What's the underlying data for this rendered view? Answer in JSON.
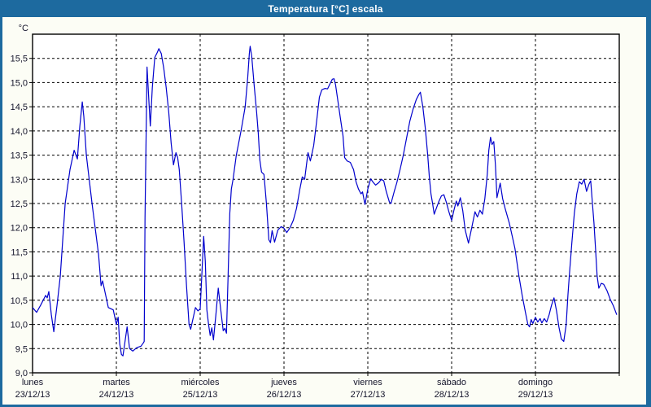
{
  "window": {
    "title": "Temperatura [°C] escala"
  },
  "colors": {
    "titlebar_bg": "#1d6a9f",
    "frame": "#1d6a9f",
    "panel_bg": "#fcfdf5",
    "plot_bg": "#ffffff",
    "grid": "#000000",
    "axis_text": "#14142a",
    "title_text": "#ffffff",
    "series": "#0000cd"
  },
  "chart_data": {
    "type": "line",
    "title": "Temperatura [°C] escala",
    "unit_label": "°C",
    "legend": "none",
    "grid": "dashed",
    "y_axis": {
      "min": 9.0,
      "max": 15.5,
      "step": 0.5,
      "plot_top_value": 16.0,
      "tick_labels": [
        "9,0",
        "9,5",
        "10,0",
        "10,5",
        "11,0",
        "11,5",
        "12,0",
        "12,5",
        "13,0",
        "13,5",
        "14,0",
        "14,5",
        "15,0",
        "15,5"
      ]
    },
    "x_axis": {
      "days": [
        {
          "weekday": "lunes",
          "date": "23/12/13"
        },
        {
          "weekday": "martes",
          "date": "24/12/13"
        },
        {
          "weekday": "miércoles",
          "date": "25/12/13"
        },
        {
          "weekday": "jueves",
          "date": "26/12/13"
        },
        {
          "weekday": "viernes",
          "date": "27/12/13"
        },
        {
          "weekday": "sábado",
          "date": "28/12/13"
        },
        {
          "weekday": "domingo",
          "date": "29/12/13"
        }
      ]
    },
    "series": [
      {
        "name": "Temperatura",
        "color": "#0000cd",
        "points": [
          [
            0.0,
            10.35
          ],
          [
            0.049,
            10.25
          ],
          [
            0.097,
            10.4
          ],
          [
            0.156,
            10.6
          ],
          [
            0.175,
            10.55
          ],
          [
            0.194,
            10.68
          ],
          [
            0.224,
            10.2
          ],
          [
            0.253,
            9.85
          ],
          [
            0.292,
            10.4
          ],
          [
            0.331,
            11.0
          ],
          [
            0.389,
            12.5
          ],
          [
            0.447,
            13.2
          ],
          [
            0.496,
            13.6
          ],
          [
            0.535,
            13.42
          ],
          [
            0.564,
            14.1
          ],
          [
            0.593,
            14.6
          ],
          [
            0.612,
            14.3
          ],
          [
            0.642,
            13.5
          ],
          [
            0.71,
            12.5
          ],
          [
            0.787,
            11.45
          ],
          [
            0.817,
            10.8
          ],
          [
            0.836,
            10.9
          ],
          [
            0.904,
            10.35
          ],
          [
            0.963,
            10.3
          ],
          [
            1.0,
            10.0
          ],
          [
            1.021,
            10.15
          ],
          [
            1.04,
            9.6
          ],
          [
            1.06,
            9.38
          ],
          [
            1.079,
            9.35
          ],
          [
            1.128,
            9.95
          ],
          [
            1.157,
            9.5
          ],
          [
            1.196,
            9.45
          ],
          [
            1.244,
            9.52
          ],
          [
            1.293,
            9.55
          ],
          [
            1.322,
            9.62
          ],
          [
            1.332,
            9.65
          ],
          [
            1.342,
            12.2
          ],
          [
            1.366,
            15.32
          ],
          [
            1.39,
            14.55
          ],
          [
            1.405,
            14.1
          ],
          [
            1.429,
            14.9
          ],
          [
            1.458,
            15.52
          ],
          [
            1.487,
            15.62
          ],
          [
            1.507,
            15.7
          ],
          [
            1.536,
            15.6
          ],
          [
            1.565,
            15.3
          ],
          [
            1.594,
            14.9
          ],
          [
            1.624,
            14.4
          ],
          [
            1.653,
            13.75
          ],
          [
            1.682,
            13.3
          ],
          [
            1.711,
            13.55
          ],
          [
            1.731,
            13.45
          ],
          [
            1.75,
            13.2
          ],
          [
            1.779,
            12.5
          ],
          [
            1.808,
            11.7
          ],
          [
            1.837,
            10.8
          ],
          [
            1.867,
            10.0
          ],
          [
            1.886,
            9.9
          ],
          [
            1.915,
            10.12
          ],
          [
            1.944,
            10.35
          ],
          [
            1.973,
            10.28
          ],
          [
            2.0,
            10.32
          ],
          [
            2.042,
            11.82
          ],
          [
            2.061,
            11.3
          ],
          [
            2.08,
            10.3
          ],
          [
            2.1,
            10.0
          ],
          [
            2.119,
            9.77
          ],
          [
            2.139,
            9.93
          ],
          [
            2.158,
            9.68
          ],
          [
            2.187,
            10.2
          ],
          [
            2.216,
            10.75
          ],
          [
            2.246,
            10.3
          ],
          [
            2.275,
            9.87
          ],
          [
            2.294,
            9.92
          ],
          [
            2.314,
            9.82
          ],
          [
            2.333,
            11.0
          ],
          [
            2.353,
            12.3
          ],
          [
            2.372,
            12.8
          ],
          [
            2.392,
            13.0
          ],
          [
            2.431,
            13.5
          ],
          [
            2.489,
            14.02
          ],
          [
            2.537,
            14.5
          ],
          [
            2.567,
            15.1
          ],
          [
            2.586,
            15.6
          ],
          [
            2.596,
            15.75
          ],
          [
            2.615,
            15.55
          ],
          [
            2.644,
            14.95
          ],
          [
            2.673,
            14.4
          ],
          [
            2.693,
            13.95
          ],
          [
            2.712,
            13.4
          ],
          [
            2.732,
            13.15
          ],
          [
            2.761,
            13.1
          ],
          [
            2.79,
            12.5
          ],
          [
            2.819,
            11.75
          ],
          [
            2.839,
            11.69
          ],
          [
            2.858,
            11.94
          ],
          [
            2.887,
            11.7
          ],
          [
            2.926,
            11.95
          ],
          [
            2.965,
            12.02
          ],
          [
            2.994,
            12.0
          ],
          [
            3.033,
            11.9
          ],
          [
            3.072,
            12.0
          ],
          [
            3.111,
            12.15
          ],
          [
            3.15,
            12.4
          ],
          [
            3.189,
            12.8
          ],
          [
            3.218,
            13.05
          ],
          [
            3.247,
            13.0
          ],
          [
            3.286,
            13.55
          ],
          [
            3.315,
            13.38
          ],
          [
            3.354,
            13.7
          ],
          [
            3.383,
            14.1
          ],
          [
            3.422,
            14.7
          ],
          [
            3.451,
            14.85
          ],
          [
            3.49,
            14.88
          ],
          [
            3.519,
            14.87
          ],
          [
            3.548,
            14.97
          ],
          [
            3.577,
            15.07
          ],
          [
            3.597,
            15.08
          ],
          [
            3.616,
            14.95
          ],
          [
            3.645,
            14.6
          ],
          [
            3.674,
            14.25
          ],
          [
            3.704,
            13.9
          ],
          [
            3.723,
            13.45
          ],
          [
            3.752,
            13.38
          ],
          [
            3.791,
            13.35
          ],
          [
            3.83,
            13.2
          ],
          [
            3.859,
            12.95
          ],
          [
            3.888,
            12.8
          ],
          [
            3.918,
            12.7
          ],
          [
            3.937,
            12.74
          ],
          [
            3.966,
            12.48
          ],
          [
            4.0,
            12.8
          ],
          [
            4.034,
            13.01
          ],
          [
            4.063,
            12.94
          ],
          [
            4.092,
            12.88
          ],
          [
            4.131,
            12.93
          ],
          [
            4.16,
            13.0
          ],
          [
            4.19,
            12.97
          ],
          [
            4.219,
            12.75
          ],
          [
            4.257,
            12.53
          ],
          [
            4.277,
            12.5
          ],
          [
            4.316,
            12.75
          ],
          [
            4.345,
            12.92
          ],
          [
            4.384,
            13.2
          ],
          [
            4.423,
            13.5
          ],
          [
            4.462,
            13.85
          ],
          [
            4.501,
            14.2
          ],
          [
            4.54,
            14.45
          ],
          [
            4.579,
            14.65
          ],
          [
            4.608,
            14.75
          ],
          [
            4.627,
            14.8
          ],
          [
            4.656,
            14.5
          ],
          [
            4.686,
            14.05
          ],
          [
            4.715,
            13.5
          ],
          [
            4.734,
            13.05
          ],
          [
            4.753,
            12.7
          ],
          [
            4.773,
            12.5
          ],
          [
            4.792,
            12.28
          ],
          [
            4.821,
            12.42
          ],
          [
            4.85,
            12.55
          ],
          [
            4.879,
            12.66
          ],
          [
            4.908,
            12.68
          ],
          [
            4.938,
            12.52
          ],
          [
            4.967,
            12.33
          ],
          [
            5.0,
            12.15
          ],
          [
            5.026,
            12.35
          ],
          [
            5.055,
            12.55
          ],
          [
            5.075,
            12.45
          ],
          [
            5.104,
            12.62
          ],
          [
            5.133,
            12.35
          ],
          [
            5.162,
            11.95
          ],
          [
            5.201,
            11.68
          ],
          [
            5.24,
            12.0
          ],
          [
            5.279,
            12.33
          ],
          [
            5.308,
            12.22
          ],
          [
            5.338,
            12.36
          ],
          [
            5.367,
            12.28
          ],
          [
            5.396,
            12.6
          ],
          [
            5.425,
            13.1
          ],
          [
            5.444,
            13.6
          ],
          [
            5.464,
            13.87
          ],
          [
            5.483,
            13.72
          ],
          [
            5.503,
            13.78
          ],
          [
            5.522,
            13.3
          ],
          [
            5.541,
            12.62
          ],
          [
            5.561,
            12.78
          ],
          [
            5.58,
            12.92
          ],
          [
            5.609,
            12.6
          ],
          [
            5.638,
            12.4
          ],
          [
            5.687,
            12.1
          ],
          [
            5.726,
            11.8
          ],
          [
            5.755,
            11.57
          ],
          [
            5.803,
            11.0
          ],
          [
            5.842,
            10.6
          ],
          [
            5.881,
            10.25
          ],
          [
            5.91,
            10.0
          ],
          [
            5.93,
            9.95
          ],
          [
            5.949,
            10.1
          ],
          [
            5.969,
            10.02
          ],
          [
            6.0,
            10.15
          ],
          [
            6.027,
            10.05
          ],
          [
            6.056,
            10.12
          ],
          [
            6.076,
            10.03
          ],
          [
            6.105,
            10.12
          ],
          [
            6.134,
            10.05
          ],
          [
            6.163,
            10.2
          ],
          [
            6.192,
            10.4
          ],
          [
            6.221,
            10.55
          ],
          [
            6.251,
            10.28
          ],
          [
            6.28,
            9.95
          ],
          [
            6.309,
            9.7
          ],
          [
            6.338,
            9.65
          ],
          [
            6.367,
            10.0
          ],
          [
            6.387,
            10.6
          ],
          [
            6.406,
            11.05
          ],
          [
            6.435,
            11.7
          ],
          [
            6.464,
            12.3
          ],
          [
            6.493,
            12.7
          ],
          [
            6.523,
            12.95
          ],
          [
            6.552,
            12.9
          ],
          [
            6.581,
            13.0
          ],
          [
            6.61,
            12.75
          ],
          [
            6.639,
            12.9
          ],
          [
            6.659,
            12.97
          ],
          [
            6.678,
            12.55
          ],
          [
            6.698,
            12.1
          ],
          [
            6.717,
            11.55
          ],
          [
            6.736,
            11.0
          ],
          [
            6.756,
            10.75
          ],
          [
            6.785,
            10.85
          ],
          [
            6.814,
            10.83
          ],
          [
            6.853,
            10.7
          ],
          [
            6.892,
            10.52
          ],
          [
            6.931,
            10.38
          ],
          [
            6.97,
            10.2
          ]
        ]
      }
    ]
  }
}
